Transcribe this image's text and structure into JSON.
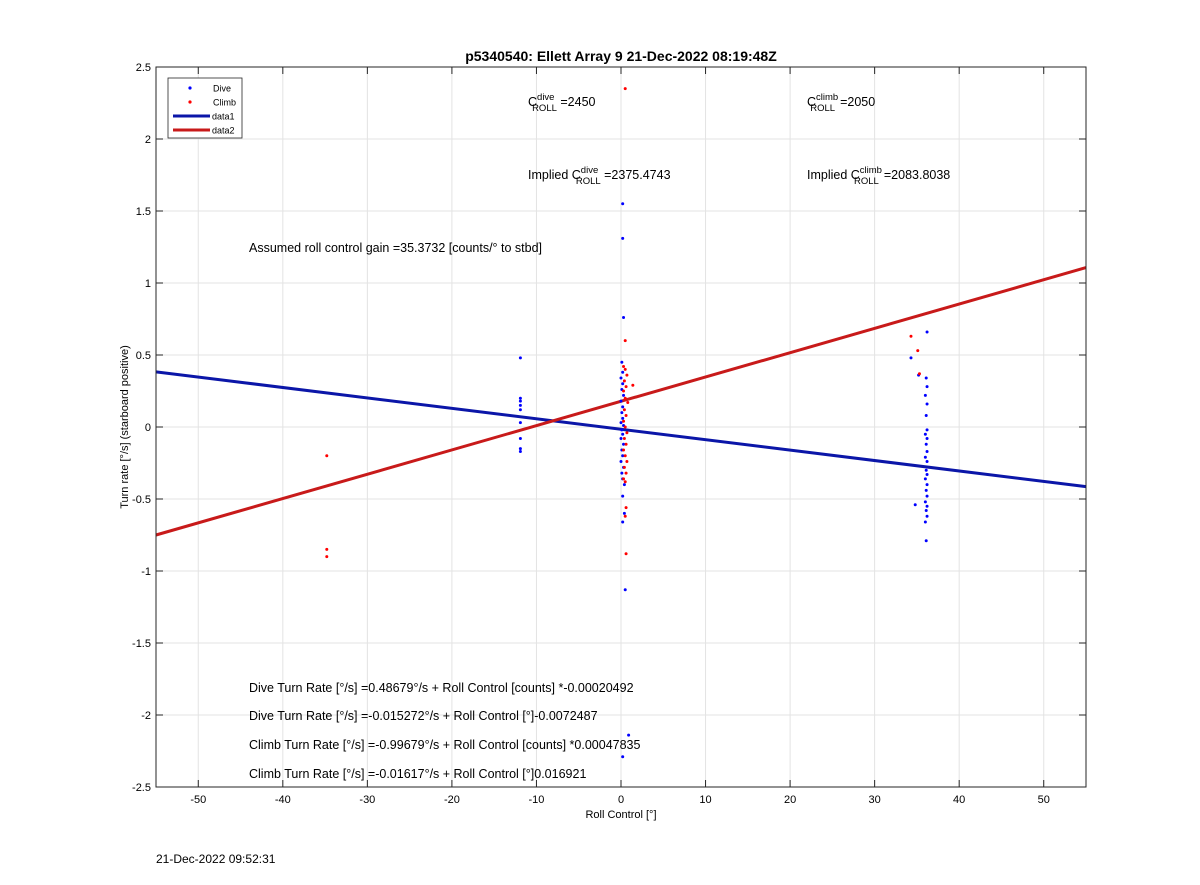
{
  "footer_timestamp": "21-Dec-2022 09:52:31",
  "chart_data": {
    "type": "scatter",
    "title": "p5340540: Ellett Array 9 21-Dec-2022 08:19:48Z",
    "xlabel": "Roll Control [°]",
    "ylabel": "Turn rate [°/s] (starboard positive)",
    "xlim": [
      -55,
      55
    ],
    "ylim": [
      -2.5,
      2.5
    ],
    "xticks": [
      -50,
      -40,
      -30,
      -20,
      -10,
      0,
      10,
      20,
      30,
      40,
      50
    ],
    "yticks": [
      -2.5,
      -2,
      -1.5,
      -1,
      -0.5,
      0,
      0.5,
      1,
      1.5,
      2,
      2.5
    ],
    "grid": true,
    "legend_position": "top-left",
    "legend": [
      {
        "label": "Dive",
        "kind": "marker",
        "color": "#0000ff"
      },
      {
        "label": "Climb",
        "kind": "marker",
        "color": "#ff0000"
      },
      {
        "label": "data1",
        "kind": "line",
        "color": "#0b16a8"
      },
      {
        "label": "data2",
        "kind": "line",
        "color": "#c81a1a"
      }
    ],
    "annotations": [
      {
        "id": "c_dive",
        "prefix": "C",
        "sup": "dive",
        "sub": "ROLL",
        "suffix": " =2450"
      },
      {
        "id": "c_climb",
        "prefix": "C",
        "sup": "climb",
        "sub": "ROLL",
        "suffix": " =2050"
      },
      {
        "id": "impl_dive",
        "prefix": "Implied C",
        "sup": "dive",
        "sub": "ROLL",
        "suffix": " =2375.4743"
      },
      {
        "id": "impl_climb",
        "prefix": "Implied C",
        "sup": "climb",
        "sub": "ROLL",
        "suffix": " =2083.8038"
      },
      {
        "id": "gain",
        "text": "Assumed roll control gain =35.3732 [counts/° to stbd]"
      },
      {
        "id": "eq1",
        "text": "Dive Turn Rate [°/s] =0.48679°/s + Roll Control [counts] *-0.00020492"
      },
      {
        "id": "eq2",
        "text": "Dive Turn Rate [°/s] =-0.015272°/s + Roll Control [°]-0.0072487"
      },
      {
        "id": "eq3",
        "text": "Climb Turn Rate [°/s] =-0.99679°/s + Roll Control [counts] *0.00047835"
      },
      {
        "id": "eq4",
        "text": "Climb Turn Rate [°/s] =-0.01617°/s + Roll Control [°]0.016921"
      }
    ],
    "lines": [
      {
        "name": "data1",
        "color": "#0b16a8",
        "x": [
          -55,
          55
        ],
        "y": [
          0.383,
          -0.414
        ]
      },
      {
        "name": "data2",
        "color": "#c81a1a",
        "x": [
          -55,
          55
        ],
        "y": [
          -0.75,
          1.107
        ]
      }
    ],
    "series": [
      {
        "name": "Dive",
        "color": "#0000ff",
        "points": [
          [
            -11.9,
            0.48
          ],
          [
            -11.9,
            0.2
          ],
          [
            -11.9,
            0.18
          ],
          [
            -11.9,
            0.15
          ],
          [
            -11.9,
            0.12
          ],
          [
            -11.9,
            0.03
          ],
          [
            -11.9,
            -0.08
          ],
          [
            -11.9,
            -0.15
          ],
          [
            -11.9,
            -0.17
          ],
          [
            0.2,
            1.55
          ],
          [
            0.2,
            1.31
          ],
          [
            0.3,
            0.76
          ],
          [
            0.1,
            0.45
          ],
          [
            0.2,
            0.38
          ],
          [
            0.0,
            0.34
          ],
          [
            0.2,
            0.3
          ],
          [
            0.1,
            0.26
          ],
          [
            0.3,
            0.22
          ],
          [
            0.0,
            0.18
          ],
          [
            0.2,
            0.14
          ],
          [
            0.1,
            0.1
          ],
          [
            0.2,
            0.06
          ],
          [
            0.0,
            0.03
          ],
          [
            0.3,
            0.01
          ],
          [
            0.1,
            -0.02
          ],
          [
            0.2,
            -0.05
          ],
          [
            0.0,
            -0.08
          ],
          [
            0.3,
            -0.12
          ],
          [
            0.1,
            -0.16
          ],
          [
            0.2,
            -0.2
          ],
          [
            0.0,
            -0.24
          ],
          [
            0.3,
            -0.28
          ],
          [
            0.1,
            -0.32
          ],
          [
            0.2,
            -0.36
          ],
          [
            0.4,
            -0.4
          ],
          [
            0.2,
            -0.48
          ],
          [
            0.4,
            -0.6
          ],
          [
            0.2,
            -0.66
          ],
          [
            0.5,
            -1.13
          ],
          [
            0.2,
            -2.29
          ],
          [
            0.9,
            -2.14
          ],
          [
            34.3,
            0.48
          ],
          [
            35.2,
            0.36
          ],
          [
            34.8,
            -0.54
          ],
          [
            36.2,
            0.66
          ],
          [
            36.1,
            0.34
          ],
          [
            36.2,
            0.28
          ],
          [
            36.0,
            0.22
          ],
          [
            36.2,
            0.16
          ],
          [
            36.1,
            0.08
          ],
          [
            36.2,
            -0.02
          ],
          [
            36.0,
            -0.05
          ],
          [
            36.2,
            -0.08
          ],
          [
            36.1,
            -0.12
          ],
          [
            36.2,
            -0.17
          ],
          [
            36.0,
            -0.21
          ],
          [
            36.2,
            -0.24
          ],
          [
            36.1,
            -0.3
          ],
          [
            36.2,
            -0.33
          ],
          [
            36.0,
            -0.36
          ],
          [
            36.2,
            -0.4
          ],
          [
            36.1,
            -0.44
          ],
          [
            36.2,
            -0.48
          ],
          [
            36.0,
            -0.52
          ],
          [
            36.2,
            -0.55
          ],
          [
            36.1,
            -0.58
          ],
          [
            36.2,
            -0.62
          ],
          [
            36.0,
            -0.66
          ],
          [
            36.1,
            -0.79
          ]
        ]
      },
      {
        "name": "Climb",
        "color": "#ff0000",
        "points": [
          [
            -34.8,
            -0.2
          ],
          [
            -34.8,
            -0.85
          ],
          [
            -34.8,
            -0.9
          ],
          [
            0.5,
            2.35
          ],
          [
            0.5,
            0.6
          ],
          [
            0.3,
            0.42
          ],
          [
            0.5,
            0.4
          ],
          [
            0.7,
            0.36
          ],
          [
            0.4,
            0.32
          ],
          [
            0.6,
            0.28
          ],
          [
            0.3,
            0.25
          ],
          [
            0.5,
            0.2
          ],
          [
            0.8,
            0.17
          ],
          [
            0.4,
            0.12
          ],
          [
            0.6,
            0.08
          ],
          [
            0.3,
            0.04
          ],
          [
            0.5,
            0.0
          ],
          [
            0.7,
            -0.04
          ],
          [
            0.4,
            -0.08
          ],
          [
            0.6,
            -0.12
          ],
          [
            0.3,
            -0.16
          ],
          [
            0.5,
            -0.2
          ],
          [
            0.7,
            -0.24
          ],
          [
            0.4,
            -0.28
          ],
          [
            0.6,
            -0.32
          ],
          [
            0.3,
            -0.36
          ],
          [
            0.5,
            -0.38
          ],
          [
            0.6,
            -0.56
          ],
          [
            0.5,
            -0.62
          ],
          [
            0.6,
            -0.88
          ],
          [
            1.4,
            0.29
          ],
          [
            34.3,
            0.63
          ],
          [
            35.1,
            0.53
          ],
          [
            35.3,
            0.37
          ]
        ]
      }
    ]
  }
}
